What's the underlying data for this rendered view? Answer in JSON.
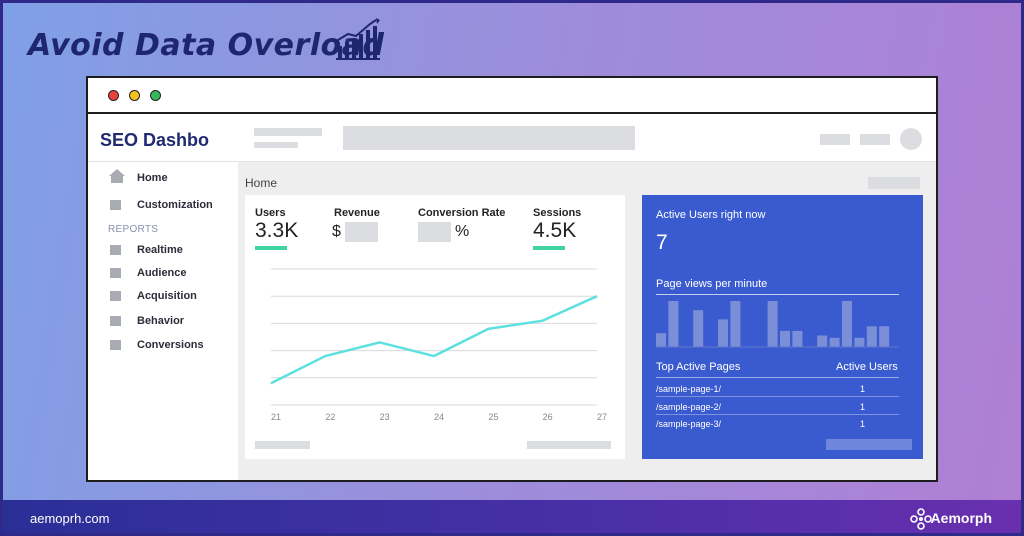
{
  "headline": "Avoid Data Overload",
  "app": {
    "title": "SEO Dashbo"
  },
  "sidebar": {
    "items": [
      {
        "label": "Home",
        "icon": "home-icon"
      },
      {
        "label": "Customization",
        "icon": "square-icon"
      }
    ],
    "reports_label": "REPORTS",
    "report_items": [
      {
        "label": "Realtime"
      },
      {
        "label": "Audience"
      },
      {
        "label": "Acquisition"
      },
      {
        "label": "Behavior"
      },
      {
        "label": "Conversions"
      }
    ]
  },
  "breadcrumb": "Home",
  "metrics": {
    "users": {
      "label": "Users",
      "value": "3.3K"
    },
    "revenue": {
      "label": "Revenue",
      "prefix": "$"
    },
    "conversion": {
      "label": "Conversion Rate",
      "suffix": "%"
    },
    "sessions": {
      "label": "Sessions",
      "value": "4.5K"
    }
  },
  "chart_data": {
    "type": "line",
    "x": [
      "21",
      "22",
      "23",
      "24",
      "25",
      "26",
      "27"
    ],
    "y": [
      0.8,
      1.8,
      2.3,
      1.8,
      2.8,
      3.1,
      4.0
    ],
    "grid": true,
    "color": "#5fe0e0"
  },
  "active_panel": {
    "active_users_label": "Active Users right now",
    "active_users_value": "7",
    "pageviews_label": "Page views per minute",
    "pageviews_bars": [
      0.3,
      1.0,
      0,
      0.8,
      0,
      0.6,
      1.0,
      0,
      0,
      1.0,
      0.35,
      0.35,
      0,
      0.25,
      0.2,
      1.0,
      0.2,
      0.45,
      0.45
    ],
    "top_pages_label": "Top Active Pages",
    "active_users_col": "Active Users",
    "pages": [
      {
        "path": "/sample-page-1/",
        "users": "1"
      },
      {
        "path": "/sample-page-2/",
        "users": "1"
      },
      {
        "path": "/sample-page-3/",
        "users": "1"
      }
    ]
  },
  "footer": {
    "url": "aemoprh.com",
    "brand": "Aemorph"
  },
  "colors": {
    "accent": "#3a5bd0",
    "title": "#1f2670",
    "metric_underline": "#3fd2a4"
  }
}
